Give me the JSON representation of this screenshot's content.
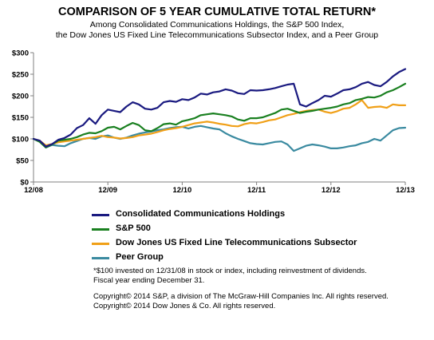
{
  "chart_data": {
    "type": "line",
    "title": "COMPARISON OF 5 YEAR CUMULATIVE TOTAL RETURN*",
    "subtitle_line1": "Among Consolidated Communications Holdings, the S&P 500 Index,",
    "subtitle_line2": "the Dow Jones US Fixed Line Telecommunications Subsector  Index, and a Peer Group",
    "xlabel": "",
    "ylabel": "",
    "x_range": [
      0,
      60
    ],
    "ylim": [
      0,
      300
    ],
    "y_ticks": [
      0,
      50,
      100,
      150,
      200,
      250,
      300
    ],
    "y_tick_labels": [
      "$0",
      "$50",
      "$100",
      "$150",
      "$200",
      "$250",
      "$300"
    ],
    "x_ticks": [
      0,
      12,
      24,
      36,
      48,
      60
    ],
    "x_tick_labels": [
      "12/08",
      "12/09",
      "12/10",
      "12/11",
      "12/12",
      "12/13"
    ],
    "grid": false,
    "legend_position": "below",
    "x_unit": "months after 12/08",
    "series": [
      {
        "name": "Consolidated Communications Holdings",
        "color": "#1a1a80",
        "x": [
          0,
          1,
          2,
          3,
          4,
          5,
          6,
          7,
          8,
          9,
          10,
          11,
          12,
          13,
          14,
          15,
          16,
          17,
          18,
          19,
          20,
          21,
          22,
          23,
          24,
          25,
          26,
          27,
          28,
          29,
          30,
          31,
          32,
          33,
          34,
          35,
          36,
          37,
          38,
          39,
          40,
          41,
          42,
          43,
          44,
          45,
          46,
          47,
          48,
          49,
          50,
          51,
          52,
          53,
          54,
          55,
          56,
          57,
          58,
          59,
          60
        ],
        "values": [
          100,
          96,
          82,
          88,
          98,
          102,
          110,
          125,
          132,
          148,
          135,
          155,
          168,
          165,
          162,
          175,
          185,
          180,
          170,
          168,
          172,
          185,
          188,
          186,
          192,
          190,
          196,
          205,
          203,
          208,
          210,
          215,
          212,
          206,
          204,
          213,
          212,
          213,
          215,
          218,
          222,
          226,
          228,
          180,
          175,
          183,
          190,
          200,
          198,
          205,
          213,
          215,
          220,
          228,
          232,
          225,
          222,
          232,
          245,
          255,
          262
        ]
      },
      {
        "name": "S&P 500",
        "color": "#1a8020",
        "x": [
          0,
          1,
          2,
          3,
          4,
          5,
          6,
          7,
          8,
          9,
          10,
          11,
          12,
          13,
          14,
          15,
          16,
          17,
          18,
          19,
          20,
          21,
          22,
          23,
          24,
          25,
          26,
          27,
          28,
          29,
          30,
          31,
          32,
          33,
          34,
          35,
          36,
          37,
          38,
          39,
          40,
          41,
          42,
          43,
          44,
          45,
          46,
          47,
          48,
          49,
          50,
          51,
          52,
          53,
          54,
          55,
          56,
          57,
          58,
          59,
          60
        ],
        "values": [
          100,
          93,
          80,
          87,
          96,
          98,
          100,
          104,
          110,
          114,
          113,
          118,
          126,
          128,
          122,
          130,
          137,
          132,
          120,
          118,
          125,
          134,
          136,
          133,
          141,
          144,
          148,
          155,
          157,
          159,
          157,
          155,
          152,
          145,
          142,
          148,
          148,
          150,
          155,
          160,
          168,
          170,
          165,
          160,
          163,
          165,
          168,
          170,
          172,
          175,
          180,
          183,
          190,
          193,
          197,
          196,
          200,
          208,
          213,
          220,
          228
        ]
      },
      {
        "name": "Dow Jones US Fixed Line Telecommunications Subsector",
        "color": "#f0a018",
        "x": [
          0,
          1,
          2,
          3,
          4,
          5,
          6,
          7,
          8,
          9,
          10,
          11,
          12,
          13,
          14,
          15,
          16,
          17,
          18,
          19,
          20,
          21,
          22,
          23,
          24,
          25,
          26,
          27,
          28,
          29,
          30,
          31,
          32,
          33,
          34,
          35,
          36,
          37,
          38,
          39,
          40,
          41,
          42,
          43,
          44,
          45,
          46,
          47,
          48,
          49,
          50,
          51,
          52,
          53,
          54,
          55,
          56,
          57,
          58,
          59,
          60
        ],
        "values": [
          100,
          96,
          85,
          88,
          92,
          94,
          96,
          98,
          100,
          102,
          104,
          107,
          104,
          103,
          101,
          102,
          104,
          108,
          110,
          112,
          116,
          120,
          123,
          125,
          128,
          132,
          136,
          138,
          140,
          138,
          135,
          133,
          130,
          129,
          134,
          137,
          136,
          139,
          143,
          145,
          150,
          155,
          158,
          162,
          165,
          167,
          168,
          163,
          160,
          164,
          170,
          172,
          180,
          190,
          172,
          174,
          175,
          172,
          180,
          178,
          178
        ]
      },
      {
        "name": "Peer Group",
        "color": "#3a8aa0",
        "x": [
          0,
          1,
          2,
          3,
          4,
          5,
          6,
          7,
          8,
          9,
          10,
          11,
          12,
          13,
          14,
          15,
          16,
          17,
          18,
          19,
          20,
          21,
          22,
          23,
          24,
          25,
          26,
          27,
          28,
          29,
          30,
          31,
          32,
          33,
          34,
          35,
          36,
          37,
          38,
          39,
          40,
          41,
          42,
          43,
          44,
          45,
          46,
          47,
          48,
          49,
          50,
          51,
          52,
          53,
          54,
          55,
          56,
          57,
          58,
          59,
          60
        ],
        "values": [
          100,
          94,
          80,
          86,
          84,
          83,
          90,
          95,
          100,
          102,
          100,
          106,
          108,
          103,
          100,
          103,
          108,
          112,
          115,
          117,
          120,
          122,
          125,
          127,
          128,
          124,
          128,
          130,
          127,
          124,
          122,
          113,
          106,
          100,
          95,
          90,
          88,
          87,
          90,
          93,
          94,
          87,
          72,
          78,
          84,
          87,
          85,
          82,
          78,
          78,
          80,
          83,
          85,
          90,
          93,
          100,
          96,
          108,
          120,
          125,
          126
        ]
      }
    ]
  },
  "footnotes": {
    "line1": "*$100 invested on 12/31/08 in stock or index, including reinvestment of dividends.",
    "line2": "Fiscal year ending December 31.",
    "line3": "Copyright© 2014 S&P, a division of The McGraw-Hill Companies Inc. All rights reserved.",
    "line4": "Copyright© 2014 Dow Jones & Co. All rights reserved."
  }
}
